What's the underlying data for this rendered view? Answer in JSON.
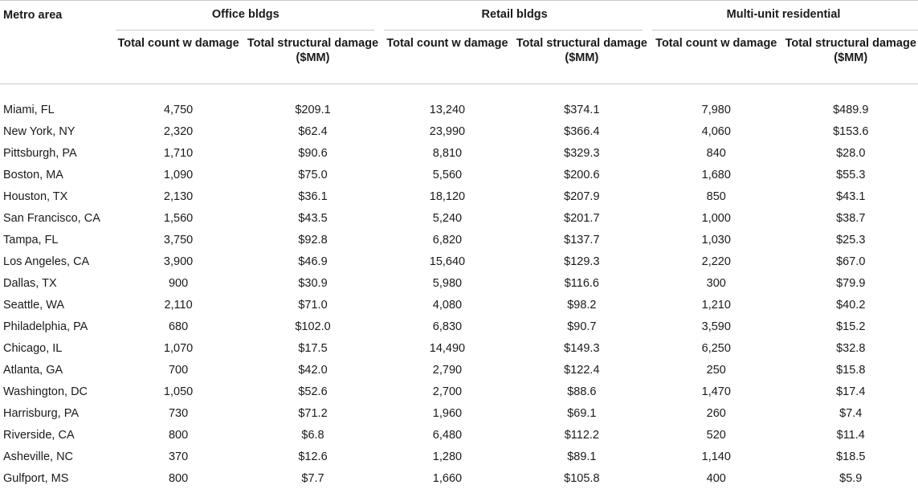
{
  "table": {
    "metro_header": "Metro area",
    "groups": [
      {
        "label": "Office bldgs"
      },
      {
        "label": "Retail bldgs"
      },
      {
        "label": "Multi-unit residential"
      }
    ],
    "sub_headers": {
      "count": "Total count w damage",
      "damage": "Total structural damage ($MM)"
    },
    "rows": [
      {
        "metro": "Miami, FL",
        "cells": [
          "4,750",
          "$209.1",
          "13,240",
          "$374.1",
          "7,980",
          "$489.9"
        ]
      },
      {
        "metro": "New York, NY",
        "cells": [
          "2,320",
          "$62.4",
          "23,990",
          "$366.4",
          "4,060",
          "$153.6"
        ]
      },
      {
        "metro": "Pittsburgh, PA",
        "cells": [
          "1,710",
          "$90.6",
          "8,810",
          "$329.3",
          "840",
          "$28.0"
        ]
      },
      {
        "metro": "Boston, MA",
        "cells": [
          "1,090",
          "$75.0",
          "5,560",
          "$200.6",
          "1,680",
          "$55.3"
        ]
      },
      {
        "metro": "Houston, TX",
        "cells": [
          "2,130",
          "$36.1",
          "18,120",
          "$207.9",
          "850",
          "$43.1"
        ]
      },
      {
        "metro": "San Francisco, CA",
        "cells": [
          "1,560",
          "$43.5",
          "5,240",
          "$201.7",
          "1,000",
          "$38.7"
        ]
      },
      {
        "metro": "Tampa, FL",
        "cells": [
          "3,750",
          "$92.8",
          "6,820",
          "$137.7",
          "1,030",
          "$25.3"
        ]
      },
      {
        "metro": "Los Angeles, CA",
        "cells": [
          "3,900",
          "$46.9",
          "15,640",
          "$129.3",
          "2,220",
          "$67.0"
        ]
      },
      {
        "metro": "Dallas, TX",
        "cells": [
          "900",
          "$30.9",
          "5,980",
          "$116.6",
          "300",
          "$79.9"
        ]
      },
      {
        "metro": "Seattle, WA",
        "cells": [
          "2,110",
          "$71.0",
          "4,080",
          "$98.2",
          "1,210",
          "$40.2"
        ]
      },
      {
        "metro": "Philadelphia, PA",
        "cells": [
          "680",
          "$102.0",
          "6,830",
          "$90.7",
          "3,590",
          "$15.2"
        ]
      },
      {
        "metro": "Chicago, IL",
        "cells": [
          "1,070",
          "$17.5",
          "14,490",
          "$149.3",
          "6,250",
          "$32.8"
        ]
      },
      {
        "metro": "Atlanta, GA",
        "cells": [
          "700",
          "$42.0",
          "2,790",
          "$122.4",
          "250",
          "$15.8"
        ]
      },
      {
        "metro": "Washington, DC",
        "cells": [
          "1,050",
          "$52.6",
          "2,700",
          "$88.6",
          "1,470",
          "$17.4"
        ]
      },
      {
        "metro": "Harrisburg, PA",
        "cells": [
          "730",
          "$71.2",
          "1,960",
          "$69.1",
          "260",
          "$7.4"
        ]
      },
      {
        "metro": "Riverside, CA",
        "cells": [
          "800",
          "$6.8",
          "6,480",
          "$112.2",
          "520",
          "$11.4"
        ]
      },
      {
        "metro": "Asheville, NC",
        "cells": [
          "370",
          "$12.6",
          "1,280",
          "$89.1",
          "1,140",
          "$18.5"
        ]
      },
      {
        "metro": "Gulfport, MS",
        "cells": [
          "800",
          "$7.7",
          "1,660",
          "$105.8",
          "400",
          "$5.9"
        ]
      }
    ]
  }
}
